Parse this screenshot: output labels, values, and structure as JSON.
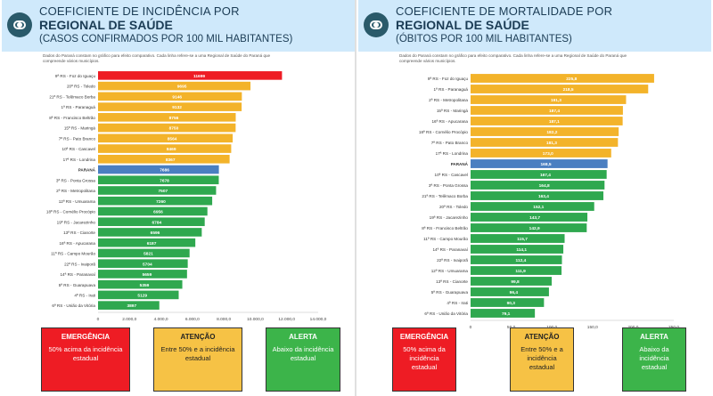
{
  "left": {
    "title_line1": "COEFICIENTE DE INCIDÊNCIA POR",
    "title_line2": "REGIONAL DE SAÚDE",
    "title_line3": "(CASOS CONFIRMADOS POR 100 MIL HABITANTES)",
    "note": "Dados do Paraná constam no gráfico para efeito comparativo. Cada linha refere-se a uma Regional de Saúde do Paraná que compreende vários municípios.",
    "chart_data": {
      "type": "bar",
      "orientation": "horizontal",
      "xlim": [
        0,
        14000
      ],
      "xticks": [
        "0",
        "2.000,0",
        "4.000,0",
        "6.000,0",
        "8.000,0",
        "10.000,0",
        "12.000,0",
        "14.000,0"
      ],
      "xtick_values": [
        0,
        2000,
        4000,
        6000,
        8000,
        10000,
        12000,
        14000
      ],
      "categories": [
        "9ª RS - Foz do Iguaçu",
        "20ª RS - Toledo",
        "21ª RS - Telêmaco Borba",
        "1ª RS - Paranaguá",
        "8ª RS - Francisco Beltrão",
        "15ª RS - Maringá",
        "7ª RS - Pato Branco",
        "10ª RS - Cascavel",
        "17ª RS - Londrina",
        "PARANÁ",
        "3ª RS - Ponta Grossa",
        "2ª RS - Metropolitana",
        "12ª RS - Umuarama",
        "18ª RS - Cornélio Procópio",
        "19ª RS - Jacarezinho",
        "13ª RS - Cianorte",
        "16ª RS - Apucarana",
        "11ª RS - Campo Mourão",
        "22ª RS - Ivaiporã",
        "14ª RS - Paranavaí",
        "5ª RS - Guarapuava",
        "4ª RS - Irati",
        "6ª RS - União da Vitória"
      ],
      "values": [
        11699,
        9695,
        9146,
        9132,
        8756,
        8750,
        8564,
        8469,
        8367,
        7686,
        7678,
        7507,
        7260,
        6956,
        6784,
        6596,
        6187,
        5821,
        5704,
        5659,
        5359,
        5129,
        3897
      ],
      "labels": [
        "11699",
        "9695",
        "9146",
        "9132",
        "8756",
        "8750",
        "8564",
        "8469",
        "8367",
        "7686",
        "7678",
        "7507",
        "7260",
        "6956",
        "6784",
        "6596",
        "6187",
        "5821",
        "5704",
        "5659",
        "5359",
        "5129",
        "3897"
      ],
      "bar_colors": [
        "#ee1c24",
        "#f3b32a",
        "#f3b32a",
        "#f3b32a",
        "#f3b32a",
        "#f3b32a",
        "#f3b32a",
        "#f3b32a",
        "#f3b32a",
        "#4a7fc1",
        "#2fa84f",
        "#2fa84f",
        "#2fa84f",
        "#2fa84f",
        "#2fa84f",
        "#2fa84f",
        "#2fa84f",
        "#2fa84f",
        "#2fa84f",
        "#2fa84f",
        "#2fa84f",
        "#2fa84f",
        "#2fa84f"
      ]
    },
    "legend": [
      {
        "title": "EMERGÊNCIA",
        "desc": "50% acima da incidência estadual",
        "color": "red"
      },
      {
        "title": "ATENÇÃO",
        "desc": "Entre 50% e a incidência estadual",
        "color": "yellow"
      },
      {
        "title": "ALERTA",
        "desc": "Abaixo da incidência estadual",
        "color": "green"
      }
    ]
  },
  "right": {
    "title_line1": "COEFICIENTE DE MORTALIDADE POR",
    "title_line2": "REGIONAL DE SAÚDE",
    "title_line3": "(ÓBITOS POR 100 MIL HABITANTES)",
    "note": "Dados do Paraná constam no gráfico para efeito comparativo. Cada linha refere-se a uma Regional de Saúde do Paraná que compreende vários municípios.",
    "chart_data": {
      "type": "bar",
      "orientation": "horizontal",
      "xlim": [
        0,
        250
      ],
      "xticks": [
        "0",
        "50,0",
        "100,0",
        "150,0",
        "200,0",
        "250,0"
      ],
      "xtick_values": [
        0,
        50,
        100,
        150,
        200,
        250
      ],
      "categories": [
        "9ª RS - Foz do Iguaçu",
        "1ª RS - Paranaguá",
        "2ª RS - Metropolitana",
        "15ª RS - Maringá",
        "16ª RS - Apucarana",
        "18ª RS - Cornélio Procópio",
        "7ª RS - Pato Branco",
        "17ª RS - Londrina",
        "PARANÁ",
        "10ª RS - Cascavel",
        "3ª RS - Ponta Grossa",
        "21ª RS - Telêmaco Borba",
        "20ª RS - Toledo",
        "19ª RS - Jacarezinho",
        "8ª RS - Francisco Beltrão",
        "11ª RS - Campo Mourão",
        "14ª RS - Paranavaí",
        "22ª RS - Ivaiporã",
        "12ª RS - Umuarama",
        "13ª RS - Cianorte",
        "5ª RS - Guarapuava",
        "4ª RS - Irati",
        "6ª RS - União da Vitória"
      ],
      "values": [
        225.8,
        218.5,
        191.3,
        187.4,
        187.1,
        182.2,
        181.3,
        173.0,
        168.5,
        167.4,
        164.8,
        163.4,
        152.1,
        143.7,
        142.9,
        115.7,
        114.1,
        112.4,
        111.9,
        99.8,
        96.4,
        90.3,
        79.1
      ],
      "labels": [
        "225,8",
        "218,5",
        "191,3",
        "187,4",
        "187,1",
        "182,2",
        "181,3",
        "173,0",
        "168,5",
        "167,4",
        "164,8",
        "163,4",
        "152,1",
        "143,7",
        "142,9",
        "115,7",
        "114,1",
        "112,4",
        "111,9",
        "99,8",
        "96,4",
        "90,3",
        "79,1"
      ],
      "bar_colors": [
        "#f3b32a",
        "#f3b32a",
        "#f3b32a",
        "#f3b32a",
        "#f3b32a",
        "#f3b32a",
        "#f3b32a",
        "#f3b32a",
        "#4a7fc1",
        "#2fa84f",
        "#2fa84f",
        "#2fa84f",
        "#2fa84f",
        "#2fa84f",
        "#2fa84f",
        "#2fa84f",
        "#2fa84f",
        "#2fa84f",
        "#2fa84f",
        "#2fa84f",
        "#2fa84f",
        "#2fa84f",
        "#2fa84f"
      ]
    },
    "legend": [
      {
        "title": "EMERGÊNCIA",
        "desc": "50% acima da incidência estadual",
        "color": "red"
      },
      {
        "title": "ATENÇÃO",
        "desc": "Entre 50% e a incidência estadual",
        "color": "yellow"
      },
      {
        "title": "ALERTA",
        "desc": "Abaixo da incidência estadual",
        "color": "green"
      }
    ]
  }
}
